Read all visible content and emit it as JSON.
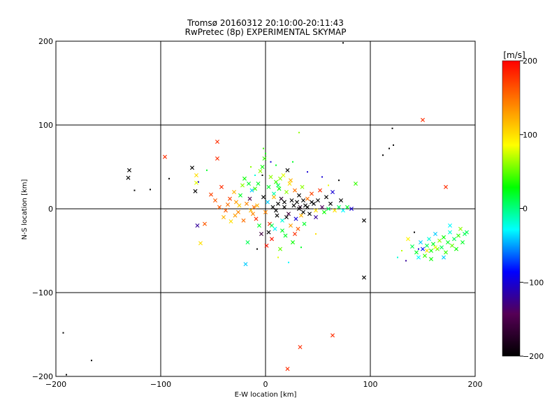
{
  "chart_data": {
    "type": "scatter",
    "title": "Tromsø 20160312 20:10:00-20:11:43",
    "subtitle": "RwPretec (8p) EXPERIMENTAL SKYMAP",
    "xlabel": "E-W location [km]",
    "ylabel": "N-S location [km]",
    "xlim": [
      -200,
      200
    ],
    "ylim": [
      -200,
      200
    ],
    "x_ticks": [
      "-200",
      "-100",
      "0",
      "100",
      "200"
    ],
    "y_ticks": [
      "-200",
      "-100",
      "0",
      "100",
      "200"
    ],
    "grid_lines": [
      -100,
      0,
      100
    ],
    "colorbar": {
      "label": "[m/s]",
      "range": [
        -200,
        200
      ],
      "ticks": [
        "-200",
        "-100",
        "0",
        "100",
        "200"
      ],
      "colormap": [
        "#000000",
        "#550055",
        "#0000ff",
        "#00ffff",
        "#00ff00",
        "#ffff00",
        "#ff8000",
        "#ff0000"
      ]
    },
    "points_note": "each point: [x_km, y_km, velocity_m_s, marker 'x' or 'dot']",
    "points": [
      [
        -130,
        46,
        -200,
        "x"
      ],
      [
        -131,
        37,
        -200,
        "x"
      ],
      [
        -125,
        22,
        -200,
        "dot"
      ],
      [
        -110,
        23,
        -200,
        "dot"
      ],
      [
        -92,
        36,
        -200,
        "dot"
      ],
      [
        -70,
        49,
        -200,
        "x"
      ],
      [
        -67,
        21,
        -200,
        "x"
      ],
      [
        -96,
        62,
        180,
        "x"
      ],
      [
        -46,
        80,
        180,
        "x"
      ],
      [
        -46,
        60,
        180,
        "x"
      ],
      [
        -66,
        40,
        100,
        "x"
      ],
      [
        -66,
        31,
        80,
        "x"
      ],
      [
        -62,
        -41,
        100,
        "x"
      ],
      [
        -58,
        -18,
        160,
        "x"
      ],
      [
        -65,
        -20,
        -120,
        "x"
      ],
      [
        -52,
        17,
        170,
        "x"
      ],
      [
        -48,
        10,
        160,
        "x"
      ],
      [
        -44,
        2,
        160,
        "x"
      ],
      [
        -40,
        -10,
        120,
        "x"
      ],
      [
        -36,
        5,
        150,
        "x"
      ],
      [
        -33,
        -15,
        100,
        "x"
      ],
      [
        -30,
        20,
        120,
        "x"
      ],
      [
        -28,
        8,
        130,
        "x"
      ],
      [
        -26,
        -4,
        140,
        "x"
      ],
      [
        -24,
        16,
        20,
        "x"
      ],
      [
        -22,
        28,
        60,
        "x"
      ],
      [
        -20,
        36,
        30,
        "x"
      ],
      [
        -19,
        -66,
        -40,
        "x"
      ],
      [
        -17,
        -40,
        10,
        "x"
      ],
      [
        -15,
        12,
        -150,
        "x"
      ],
      [
        -13,
        22,
        -40,
        "x"
      ],
      [
        -11,
        2,
        150,
        "x"
      ],
      [
        -9,
        -12,
        180,
        "x"
      ],
      [
        -7,
        30,
        20,
        "x"
      ],
      [
        -5,
        45,
        60,
        "x"
      ],
      [
        -4,
        -30,
        -160,
        "x"
      ],
      [
        -2,
        14,
        -200,
        "x"
      ],
      [
        0,
        -4,
        140,
        "x"
      ],
      [
        2,
        8,
        -40,
        "x"
      ],
      [
        3,
        26,
        20,
        "x"
      ],
      [
        4,
        -18,
        180,
        "x"
      ],
      [
        5,
        38,
        60,
        "x"
      ],
      [
        6,
        -36,
        190,
        "x"
      ],
      [
        7,
        2,
        -200,
        "x"
      ],
      [
        8,
        18,
        -10,
        "x"
      ],
      [
        9,
        -24,
        -30,
        "x"
      ],
      [
        10,
        32,
        40,
        "x"
      ],
      [
        11,
        -8,
        -200,
        "x"
      ],
      [
        12,
        6,
        -200,
        "x"
      ],
      [
        13,
        24,
        30,
        "x"
      ],
      [
        14,
        -48,
        50,
        "x"
      ],
      [
        15,
        12,
        -180,
        "x"
      ],
      [
        16,
        -14,
        -20,
        "x"
      ],
      [
        17,
        40,
        80,
        "x"
      ],
      [
        18,
        2,
        -200,
        "x"
      ],
      [
        19,
        -32,
        20,
        "x"
      ],
      [
        20,
        20,
        60,
        "x"
      ],
      [
        21,
        46,
        -200,
        "x"
      ],
      [
        22,
        -6,
        -160,
        "x"
      ],
      [
        23,
        30,
        100,
        "x"
      ],
      [
        24,
        -20,
        130,
        "x"
      ],
      [
        25,
        10,
        -200,
        "x"
      ],
      [
        26,
        -40,
        30,
        "x"
      ],
      [
        27,
        4,
        -200,
        "x"
      ],
      [
        28,
        22,
        150,
        "x"
      ],
      [
        29,
        -12,
        -100,
        "x"
      ],
      [
        30,
        8,
        -200,
        "x"
      ],
      [
        31,
        -24,
        160,
        "x"
      ],
      [
        32,
        16,
        -200,
        "x"
      ],
      [
        33,
        2,
        -180,
        "x"
      ],
      [
        34,
        -8,
        120,
        "x"
      ],
      [
        35,
        26,
        60,
        "x"
      ],
      [
        36,
        10,
        -200,
        "x"
      ],
      [
        37,
        -18,
        20,
        "x"
      ],
      [
        38,
        4,
        -200,
        "x"
      ],
      [
        40,
        12,
        150,
        "x"
      ],
      [
        42,
        -6,
        -200,
        "x"
      ],
      [
        44,
        18,
        170,
        "x"
      ],
      [
        46,
        6,
        -200,
        "x"
      ],
      [
        48,
        -2,
        100,
        "x"
      ],
      [
        50,
        10,
        -200,
        "x"
      ],
      [
        52,
        22,
        180,
        "x"
      ],
      [
        54,
        2,
        -140,
        "x"
      ],
      [
        56,
        -4,
        30,
        "x"
      ],
      [
        58,
        14,
        -200,
        "x"
      ],
      [
        60,
        0,
        10,
        "x"
      ],
      [
        62,
        6,
        -200,
        "x"
      ],
      [
        64,
        20,
        -100,
        "x"
      ],
      [
        66,
        -2,
        100,
        "x"
      ],
      [
        70,
        2,
        10,
        "x"
      ],
      [
        74,
        -2,
        -30,
        "x"
      ],
      [
        78,
        2,
        20,
        "x"
      ],
      [
        82,
        0,
        -100,
        "x"
      ],
      [
        86,
        30,
        40,
        "x"
      ],
      [
        72,
        10,
        -200,
        "x"
      ],
      [
        -8,
        4,
        120,
        "x"
      ],
      [
        -12,
        -6,
        140,
        "x"
      ],
      [
        -16,
        30,
        20,
        "x"
      ],
      [
        -3,
        50,
        30,
        "x"
      ],
      [
        -1,
        60,
        40,
        "x"
      ],
      [
        1,
        -44,
        190,
        "x"
      ],
      [
        3,
        -28,
        -200,
        "x"
      ],
      [
        6,
        -20,
        10,
        "x"
      ],
      [
        8,
        14,
        120,
        "x"
      ],
      [
        10,
        -2,
        -200,
        "x"
      ],
      [
        12,
        28,
        10,
        "x"
      ],
      [
        14,
        36,
        60,
        "x"
      ],
      [
        16,
        -26,
        20,
        "x"
      ],
      [
        18,
        8,
        -200,
        "x"
      ],
      [
        20,
        -10,
        -200,
        "x"
      ],
      [
        24,
        34,
        120,
        "x"
      ],
      [
        28,
        -30,
        180,
        "x"
      ],
      [
        32,
        0,
        -200,
        "x"
      ],
      [
        36,
        -4,
        -200,
        "x"
      ],
      [
        40,
        2,
        -200,
        "x"
      ],
      [
        44,
        8,
        -200,
        "x"
      ],
      [
        48,
        -10,
        -120,
        "x"
      ],
      [
        -6,
        -20,
        20,
        "x"
      ],
      [
        -10,
        24,
        40,
        "x"
      ],
      [
        -14,
        -2,
        120,
        "x"
      ],
      [
        -18,
        6,
        140,
        "x"
      ],
      [
        -21,
        -14,
        150,
        "x"
      ],
      [
        -25,
        4,
        110,
        "x"
      ],
      [
        -29,
        -8,
        130,
        "x"
      ],
      [
        -34,
        12,
        170,
        "x"
      ],
      [
        -38,
        -2,
        160,
        "x"
      ],
      [
        -42,
        26,
        180,
        "x"
      ],
      [
        0,
        66,
        30,
        "dot"
      ],
      [
        -2,
        72,
        40,
        "dot"
      ],
      [
        5,
        56,
        -100,
        "dot"
      ],
      [
        10,
        52,
        20,
        "dot"
      ],
      [
        32,
        91,
        60,
        "dot"
      ],
      [
        40,
        44,
        -100,
        "dot"
      ],
      [
        -10,
        40,
        -20,
        "dot"
      ],
      [
        -14,
        50,
        60,
        "dot"
      ],
      [
        -8,
        -48,
        -200,
        "dot"
      ],
      [
        12,
        -58,
        80,
        "dot"
      ],
      [
        22,
        -64,
        -30,
        "dot"
      ],
      [
        34,
        -46,
        20,
        "dot"
      ],
      [
        -3,
        40,
        -200,
        "dot"
      ],
      [
        26,
        56,
        20,
        "dot"
      ],
      [
        54,
        38,
        -100,
        "dot"
      ],
      [
        60,
        28,
        80,
        "dot"
      ],
      [
        70,
        34,
        -200,
        "dot"
      ],
      [
        48,
        -30,
        100,
        "dot"
      ],
      [
        -56,
        46,
        20,
        "dot"
      ],
      [
        -64,
        32,
        -100,
        "dot"
      ],
      [
        94,
        -14,
        -200,
        "x"
      ],
      [
        94,
        -82,
        -200,
        "x"
      ],
      [
        112,
        64,
        -200,
        "dot"
      ],
      [
        118,
        72,
        -200,
        "dot"
      ],
      [
        122,
        76,
        -200,
        "dot"
      ],
      [
        121,
        96,
        -200,
        "dot"
      ],
      [
        142,
        -28,
        -200,
        "dot"
      ],
      [
        150,
        106,
        180,
        "x"
      ],
      [
        172,
        26,
        180,
        "x"
      ],
      [
        64,
        -151,
        180,
        "x"
      ],
      [
        33,
        -165,
        180,
        "x"
      ],
      [
        21,
        -191,
        180,
        "x"
      ],
      [
        -190,
        -198,
        -200,
        "dot"
      ],
      [
        -166,
        -181,
        -200,
        "dot"
      ],
      [
        -193,
        -148,
        -200,
        "dot"
      ],
      [
        74,
        198,
        -200,
        "dot"
      ],
      [
        140,
        -45,
        10,
        "x"
      ],
      [
        144,
        -52,
        20,
        "x"
      ],
      [
        148,
        -40,
        -40,
        "x"
      ],
      [
        150,
        -48,
        -80,
        "x"
      ],
      [
        152,
        -56,
        40,
        "x"
      ],
      [
        154,
        -44,
        10,
        "x"
      ],
      [
        156,
        -36,
        -20,
        "x"
      ],
      [
        158,
        -50,
        30,
        "x"
      ],
      [
        160,
        -42,
        20,
        "x"
      ],
      [
        162,
        -30,
        -40,
        "x"
      ],
      [
        164,
        -48,
        50,
        "x"
      ],
      [
        166,
        -38,
        60,
        "x"
      ],
      [
        168,
        -46,
        10,
        "x"
      ],
      [
        170,
        -34,
        30,
        "x"
      ],
      [
        172,
        -52,
        40,
        "x"
      ],
      [
        174,
        -40,
        20,
        "x"
      ],
      [
        176,
        -28,
        -20,
        "x"
      ],
      [
        178,
        -44,
        50,
        "x"
      ],
      [
        180,
        -36,
        10,
        "x"
      ],
      [
        182,
        -48,
        30,
        "x"
      ],
      [
        184,
        -32,
        40,
        "x"
      ],
      [
        186,
        -24,
        60,
        "x"
      ],
      [
        188,
        -40,
        20,
        "x"
      ],
      [
        190,
        -30,
        10,
        "x"
      ],
      [
        192,
        -28,
        10,
        "x"
      ],
      [
        146,
        -58,
        -30,
        "x"
      ],
      [
        158,
        -60,
        30,
        "x"
      ],
      [
        170,
        -58,
        -40,
        "x"
      ],
      [
        176,
        -20,
        -30,
        "x"
      ],
      [
        162,
        -46,
        80,
        "x"
      ],
      [
        154,
        -50,
        100,
        "x"
      ],
      [
        136,
        -36,
        90,
        "x"
      ],
      [
        130,
        -50,
        70,
        "dot"
      ],
      [
        126,
        -58,
        -20,
        "dot"
      ],
      [
        134,
        -62,
        -120,
        "dot"
      ],
      [
        146,
        -48,
        -100,
        "dot"
      ]
    ]
  }
}
